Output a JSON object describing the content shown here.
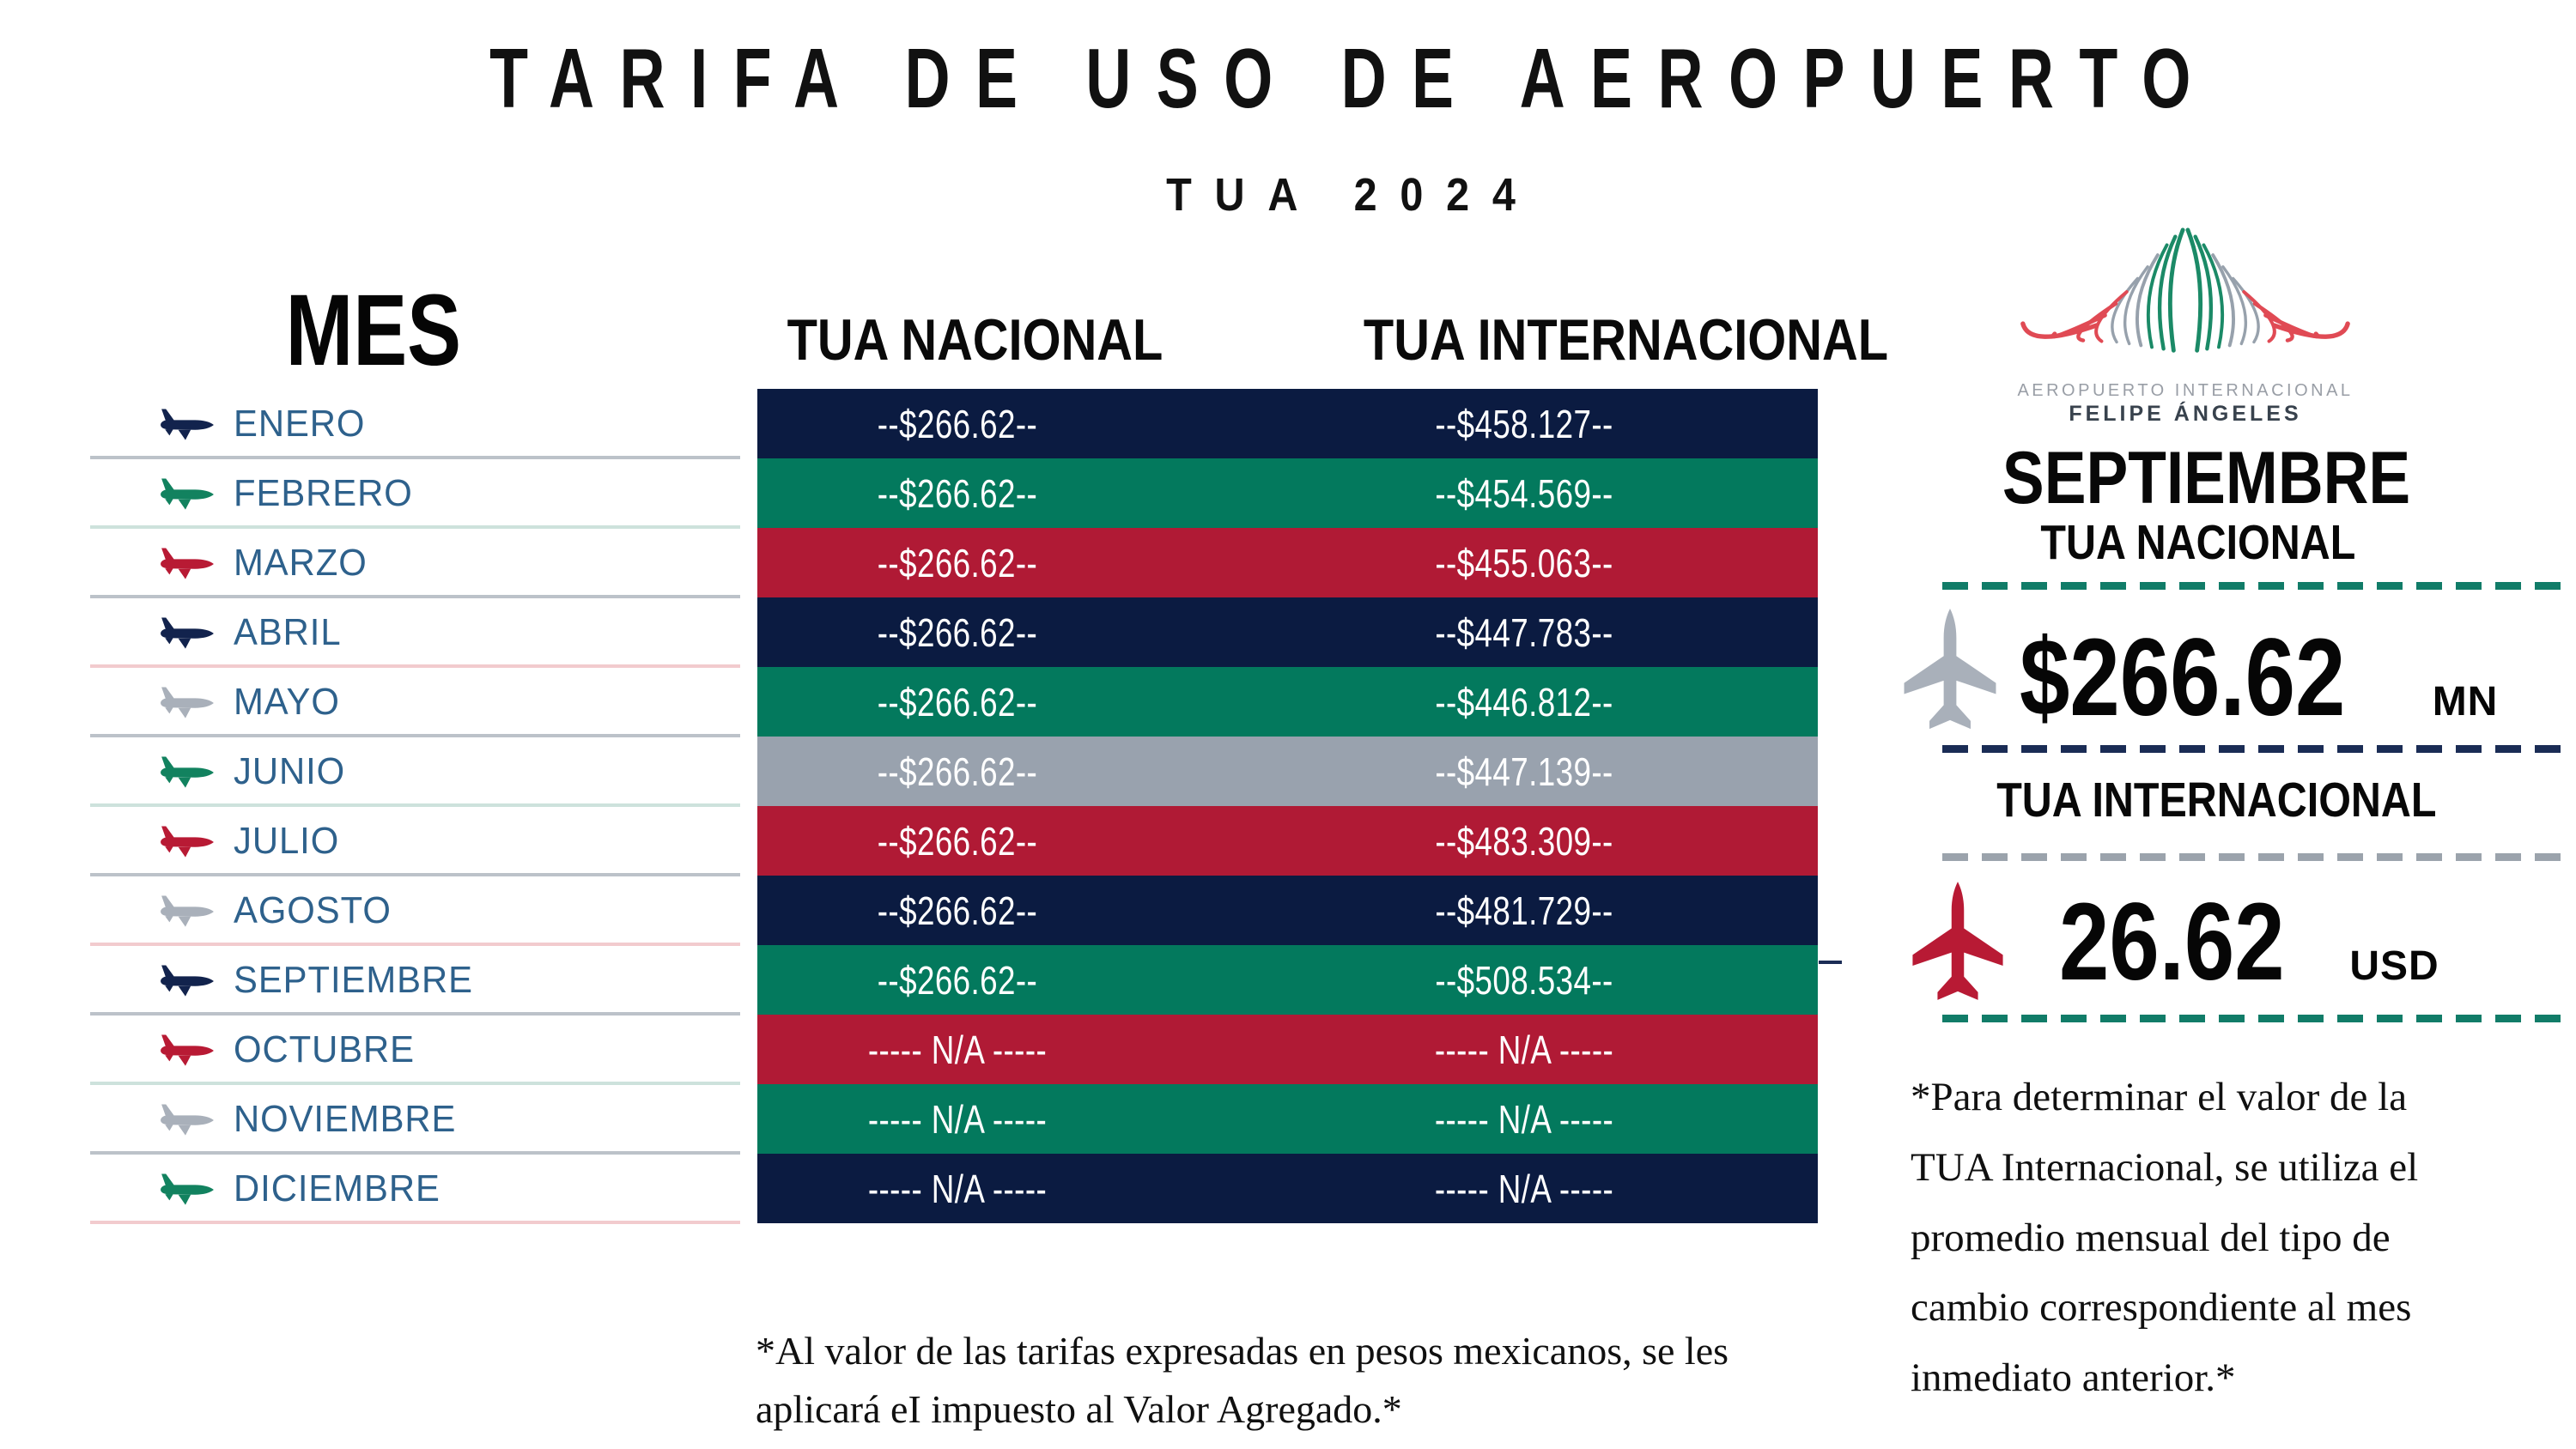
{
  "header": {
    "title": "TARIFA DE USO DE AEROPUERTO",
    "subtitle": "TUA 2024"
  },
  "table": {
    "mes_label": "MES",
    "col_nacional": "TUA NACIONAL",
    "col_internacional": "TUA INTERNACIONAL",
    "rows": [
      {
        "month": "ENERO",
        "nacional": "--$266.62--",
        "internacional": "--$458.127--",
        "row_color": "#0B1B41",
        "plane_color": "#12234D",
        "separator_color": "#BCC2C9"
      },
      {
        "month": "FEBRERO",
        "nacional": "--$266.62--",
        "internacional": "--$454.569--",
        "row_color": "#03795D",
        "plane_color": "#12825F",
        "separator_color": "#CDE2DC"
      },
      {
        "month": "MARZO",
        "nacional": "--$266.62--",
        "internacional": "--$455.063--",
        "row_color": "#B01A35",
        "plane_color": "#B81A34",
        "separator_color": "#BCC2C9"
      },
      {
        "month": "ABRIL",
        "nacional": "--$266.62--",
        "internacional": "--$447.783--",
        "row_color": "#0B1B41",
        "plane_color": "#12234D",
        "separator_color": "#F2CBCE"
      },
      {
        "month": "MAYO",
        "nacional": "--$266.62--",
        "internacional": "--$446.812--",
        "row_color": "#03795D",
        "plane_color": "#A9B0BA",
        "separator_color": "#BCC2C9"
      },
      {
        "month": "JUNIO",
        "nacional": "--$266.62--",
        "internacional": "--$447.139--",
        "row_color": "#99A2AE",
        "plane_color": "#12825F",
        "separator_color": "#CDE2DC"
      },
      {
        "month": "JULIO",
        "nacional": "--$266.62--",
        "internacional": "--$483.309--",
        "row_color": "#B01A35",
        "plane_color": "#B81A34",
        "separator_color": "#BCC2C9"
      },
      {
        "month": "AGOSTO",
        "nacional": "--$266.62--",
        "internacional": "--$481.729--",
        "row_color": "#0B1B41",
        "plane_color": "#A9B0BA",
        "separator_color": "#F2CBCE"
      },
      {
        "month": "SEPTIEMBRE",
        "nacional": "--$266.62--",
        "internacional": "--$508.534--",
        "row_color": "#03795D",
        "plane_color": "#12234D",
        "separator_color": "#BCC2C9"
      },
      {
        "month": "OCTUBRE",
        "nacional": "----- N/A -----",
        "internacional": "----- N/A -----",
        "row_color": "#B01A35",
        "plane_color": "#B81A34",
        "separator_color": "#CDE2DC"
      },
      {
        "month": "NOVIEMBRE",
        "nacional": "----- N/A -----",
        "internacional": "----- N/A -----",
        "row_color": "#03795D",
        "plane_color": "#A9B0BA",
        "separator_color": "#BCC2C9"
      },
      {
        "month": "DICIEMBRE",
        "nacional": "----- N/A -----",
        "internacional": "----- N/A -----",
        "row_color": "#0B1B41",
        "plane_color": "#12825F",
        "separator_color": "#F2CBCE"
      }
    ]
  },
  "footnote_left": {
    "lines": [
      "*Al valor de las tarifas expresadas en pesos mexicanos, se les",
      "aplicará eI impuesto al Valor Agregado.*"
    ]
  },
  "panel": {
    "logo": {
      "line1": "AEROPUERTO INTERNACIONAL",
      "line2": "FELIPE ÁNGELES"
    },
    "month_title": "SEPTIEMBRE",
    "nacional_label": "TUA NACIONAL",
    "nacional_value": "$266.62",
    "nacional_currency": "MN",
    "internacional_label": "TUA INTERNACIONAL",
    "internacional_value": "26.62",
    "internacional_currency": "USD",
    "footnote_lines": [
      "*Para determinar el valor de la",
      "TUA  Internacional, se utiliza  el",
      "promedio mensual del tipo de",
      "cambio correspondiente al mes",
      "inmediato anterior.*"
    ]
  },
  "colors": {
    "row_navy": "#0B1B41",
    "row_green": "#03795D",
    "row_red": "#B01A35",
    "row_gray": "#99A2AE",
    "month_text": "#2E618C",
    "dash_teal": "#117C68",
    "dash_navy": "#1A2C55",
    "dash_gray": "#9BA3AC",
    "logo_green": "#1B8A67",
    "logo_gray": "#97A1AC",
    "logo_red": "#E04A54",
    "value_text": "#FFFFFF"
  }
}
